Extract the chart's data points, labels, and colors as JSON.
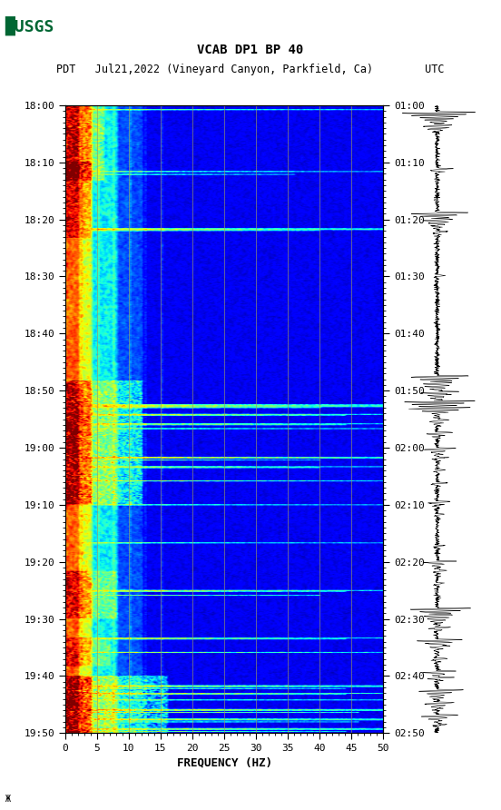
{
  "title_line1": "VCAB DP1 BP 40",
  "title_line2": "PDT   Jul21,2022 (Vineyard Canyon, Parkfield, Ca)        UTC",
  "xlabel": "FREQUENCY (HZ)",
  "freq_min": 0,
  "freq_max": 50,
  "ytick_pdt": [
    "18:00",
    "18:10",
    "18:20",
    "18:30",
    "18:40",
    "18:50",
    "19:00",
    "19:10",
    "19:20",
    "19:30",
    "19:40",
    "19:50"
  ],
  "ytick_utc": [
    "01:00",
    "01:10",
    "01:20",
    "01:30",
    "01:40",
    "01:50",
    "02:00",
    "02:10",
    "02:20",
    "02:30",
    "02:40",
    "02:50"
  ],
  "xticks": [
    0,
    5,
    10,
    15,
    20,
    25,
    30,
    35,
    40,
    45,
    50
  ],
  "vgrid_freqs": [
    5,
    10,
    15,
    20,
    25,
    30,
    35,
    40,
    45
  ],
  "grid_color": "#999966",
  "fig_bg": "#ffffff",
  "usgs_green": "#006633",
  "n_time_bins": 660,
  "n_freq_bins": 250,
  "duration_minutes": 110,
  "event_rows": [
    {
      "t": 0,
      "freq_max": 250,
      "intensity": 0.92
    },
    {
      "t": 5,
      "freq_max": 250,
      "intensity": 0.88
    },
    {
      "t": 70,
      "freq_max": 250,
      "intensity": 0.85
    },
    {
      "t": 73,
      "freq_max": 180,
      "intensity": 0.8
    },
    {
      "t": 130,
      "freq_max": 250,
      "intensity": 0.9
    },
    {
      "t": 131,
      "freq_max": 250,
      "intensity": 0.88
    },
    {
      "t": 132,
      "freq_max": 200,
      "intensity": 0.75
    },
    {
      "t": 315,
      "freq_max": 250,
      "intensity": 0.92
    },
    {
      "t": 316,
      "freq_max": 250,
      "intensity": 0.9
    },
    {
      "t": 317,
      "freq_max": 250,
      "intensity": 0.88
    },
    {
      "t": 318,
      "freq_max": 200,
      "intensity": 0.8
    },
    {
      "t": 325,
      "freq_max": 250,
      "intensity": 0.9
    },
    {
      "t": 326,
      "freq_max": 220,
      "intensity": 0.85
    },
    {
      "t": 335,
      "freq_max": 250,
      "intensity": 0.88
    },
    {
      "t": 336,
      "freq_max": 220,
      "intensity": 0.8
    },
    {
      "t": 340,
      "freq_max": 250,
      "intensity": 0.85
    },
    {
      "t": 370,
      "freq_max": 250,
      "intensity": 0.9
    },
    {
      "t": 371,
      "freq_max": 250,
      "intensity": 0.88
    },
    {
      "t": 373,
      "freq_max": 200,
      "intensity": 0.75
    },
    {
      "t": 380,
      "freq_max": 250,
      "intensity": 0.88
    },
    {
      "t": 381,
      "freq_max": 200,
      "intensity": 0.8
    },
    {
      "t": 395,
      "freq_max": 250,
      "intensity": 0.85
    },
    {
      "t": 420,
      "freq_max": 250,
      "intensity": 0.82
    },
    {
      "t": 460,
      "freq_max": 250,
      "intensity": 0.8
    },
    {
      "t": 510,
      "freq_max": 250,
      "intensity": 0.88
    },
    {
      "t": 511,
      "freq_max": 220,
      "intensity": 0.82
    },
    {
      "t": 515,
      "freq_max": 200,
      "intensity": 0.75
    },
    {
      "t": 560,
      "freq_max": 250,
      "intensity": 0.85
    },
    {
      "t": 561,
      "freq_max": 220,
      "intensity": 0.8
    },
    {
      "t": 575,
      "freq_max": 250,
      "intensity": 0.82
    },
    {
      "t": 610,
      "freq_max": 250,
      "intensity": 0.9
    },
    {
      "t": 611,
      "freq_max": 250,
      "intensity": 0.88
    },
    {
      "t": 613,
      "freq_max": 220,
      "intensity": 0.82
    },
    {
      "t": 618,
      "freq_max": 250,
      "intensity": 0.88
    },
    {
      "t": 619,
      "freq_max": 220,
      "intensity": 0.82
    },
    {
      "t": 625,
      "freq_max": 250,
      "intensity": 0.85
    },
    {
      "t": 635,
      "freq_max": 250,
      "intensity": 0.9
    },
    {
      "t": 636,
      "freq_max": 250,
      "intensity": 0.9
    },
    {
      "t": 638,
      "freq_max": 230,
      "intensity": 0.85
    },
    {
      "t": 645,
      "freq_max": 250,
      "intensity": 0.88
    },
    {
      "t": 646,
      "freq_max": 250,
      "intensity": 0.88
    },
    {
      "t": 648,
      "freq_max": 230,
      "intensity": 0.82
    },
    {
      "t": 655,
      "freq_max": 250,
      "intensity": 0.85
    },
    {
      "t": 656,
      "freq_max": 250,
      "intensity": 0.88
    },
    {
      "t": 658,
      "freq_max": 220,
      "intensity": 0.8
    }
  ]
}
